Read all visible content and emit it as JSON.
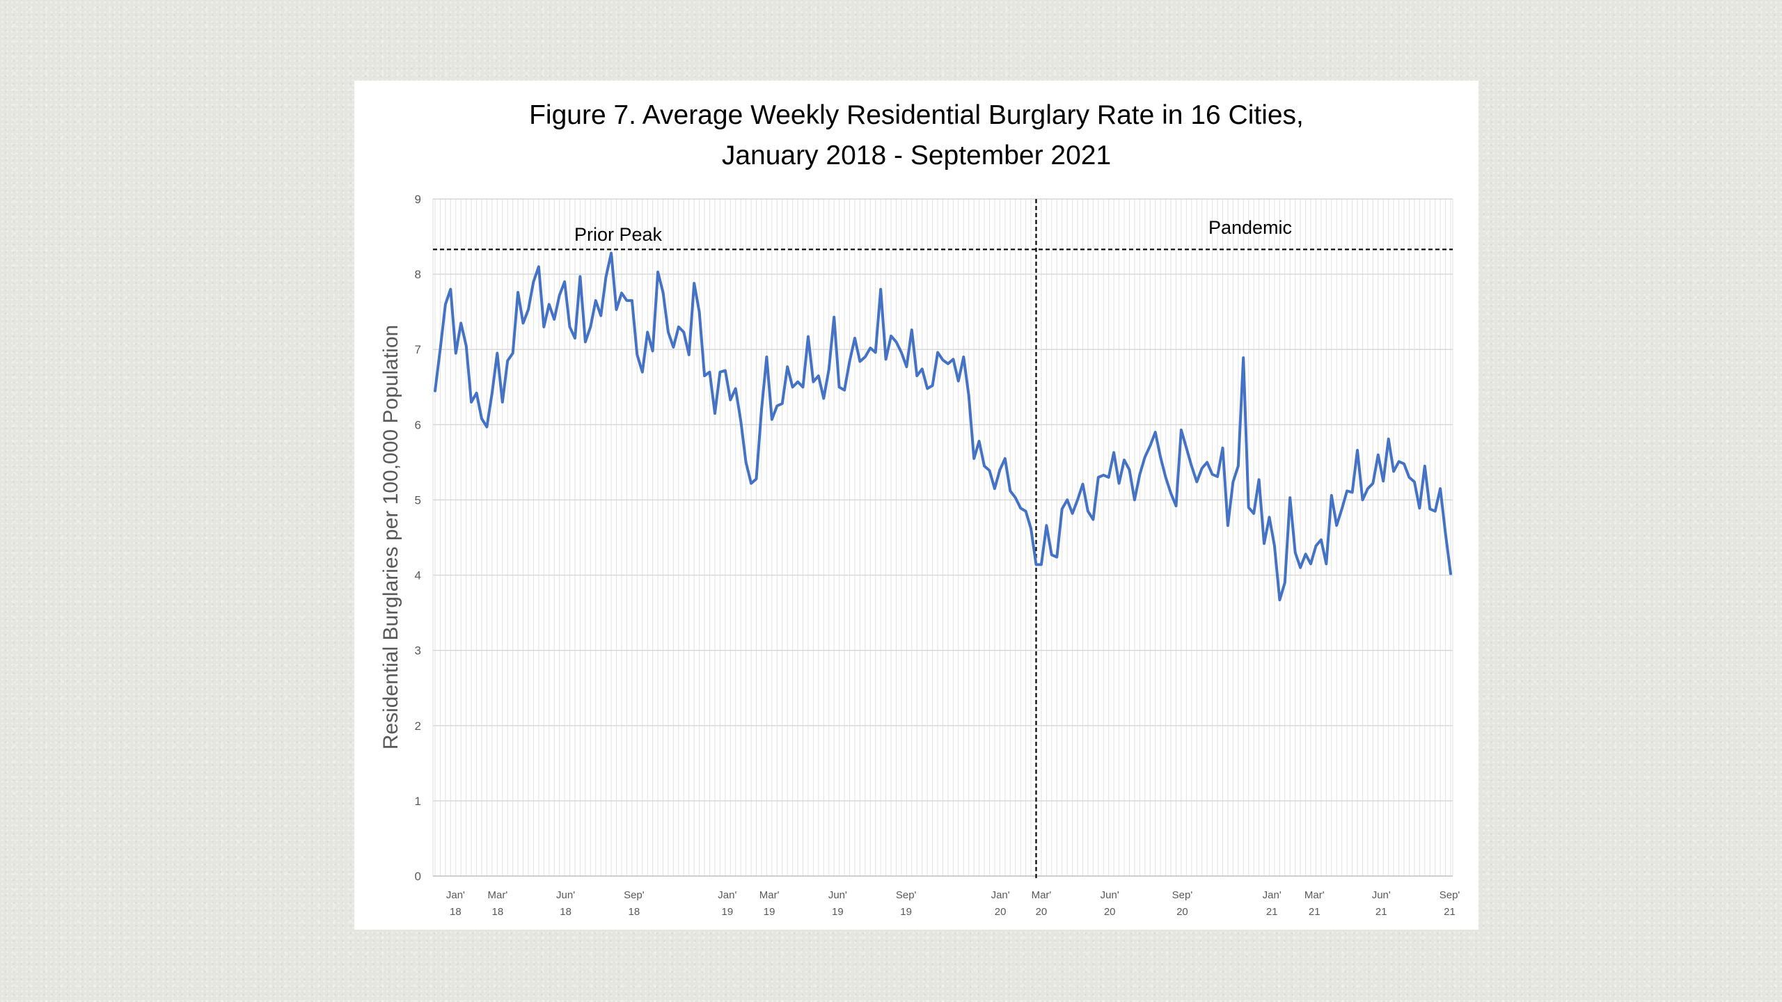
{
  "colors": {
    "page_background": "#e6e6e0",
    "card": "#ffffff",
    "series": "#4472C4",
    "reference_lines": "#000000"
  },
  "chart_data": {
    "type": "line",
    "title_lines": [
      "Figure 7. Average Weekly Residential Burglary Rate in 16 Cities,",
      "January 2018 - September 2021"
    ],
    "ylabel": "Residential Burglaries per 100,000 Population",
    "ylim": [
      0,
      9
    ],
    "yticks": [
      "0",
      "1",
      "2",
      "3",
      "4",
      "5",
      "6",
      "7",
      "8",
      "9"
    ],
    "grid": true,
    "x_tick_labels": [
      {
        "month": "Jan'",
        "year": "18"
      },
      {
        "month": "Mar'",
        "year": "18"
      },
      {
        "month": "Jun'",
        "year": "18"
      },
      {
        "month": "Sep'",
        "year": "18"
      },
      {
        "month": "Jan'",
        "year": "19"
      },
      {
        "month": "Mar'",
        "year": "19"
      },
      {
        "month": "Jun'",
        "year": "19"
      },
      {
        "month": "Sep'",
        "year": "19"
      },
      {
        "month": "Jan'",
        "year": "20"
      },
      {
        "month": "Mar'",
        "year": "20"
      },
      {
        "month": "Jun'",
        "year": "20"
      },
      {
        "month": "Sep'",
        "year": "20"
      },
      {
        "month": "Jan'",
        "year": "21"
      },
      {
        "month": "Mar'",
        "year": "21"
      },
      {
        "month": "Jun'",
        "year": "21"
      },
      {
        "month": "Sep'",
        "year": "21"
      }
    ],
    "series": [
      {
        "values": [
          6.45,
          7.0,
          7.6,
          7.8,
          6.95,
          7.35,
          7.05,
          6.3,
          6.42,
          6.08,
          5.97,
          6.42,
          6.95,
          6.3,
          6.85,
          6.95,
          7.76,
          7.35,
          7.53,
          7.9,
          8.1,
          7.3,
          7.6,
          7.4,
          7.72,
          7.9,
          7.3,
          7.15,
          7.97,
          7.1,
          7.3,
          7.65,
          7.45,
          7.97,
          8.28,
          7.53,
          7.75,
          7.65,
          7.65,
          6.93,
          6.7,
          7.23,
          6.98,
          8.03,
          7.76,
          7.23,
          7.03,
          7.3,
          7.23,
          6.93,
          7.88,
          7.5,
          6.65,
          6.7,
          6.15,
          6.7,
          6.72,
          6.33,
          6.48,
          6.05,
          5.5,
          5.22,
          5.28,
          6.2,
          6.9,
          6.07,
          6.25,
          6.28,
          6.77,
          6.5,
          6.57,
          6.5,
          7.17,
          6.57,
          6.65,
          6.35,
          6.73,
          7.43,
          6.5,
          6.46,
          6.84,
          7.15,
          6.84,
          6.9,
          7.02,
          6.96,
          7.8,
          6.87,
          7.18,
          7.1,
          6.96,
          6.77,
          7.26,
          6.65,
          6.74,
          6.48,
          6.52,
          6.96,
          6.86,
          6.81,
          6.87,
          6.58,
          6.9,
          6.39,
          5.55,
          5.78,
          5.45,
          5.39,
          5.15,
          5.4,
          5.55,
          5.12,
          5.03,
          4.89,
          4.85,
          4.62,
          4.14,
          4.14,
          4.66,
          4.27,
          4.24,
          4.88,
          5.0,
          4.82,
          5.0,
          5.21,
          4.85,
          4.74,
          5.3,
          5.33,
          5.3,
          5.63,
          5.22,
          5.53,
          5.4,
          5.0,
          5.34,
          5.57,
          5.72,
          5.9,
          5.57,
          5.3,
          5.09,
          4.92,
          5.93,
          5.69,
          5.45,
          5.24,
          5.42,
          5.5,
          5.34,
          5.31,
          5.69,
          4.66,
          5.24,
          5.45,
          6.89,
          4.9,
          4.82,
          5.27,
          4.42,
          4.77,
          4.39,
          3.67,
          3.9,
          5.03,
          4.3,
          4.1,
          4.28,
          4.15,
          4.39,
          4.47,
          4.15,
          5.06,
          4.66,
          4.88,
          5.12,
          5.1,
          5.66,
          5.0,
          5.15,
          5.22,
          5.6,
          5.25,
          5.81,
          5.38,
          5.51,
          5.48,
          5.3,
          5.24,
          4.89,
          5.45,
          4.88,
          4.85,
          5.15,
          4.55,
          4.02
        ],
        "color": "#4472C4"
      }
    ],
    "reference_line": {
      "orientation": "horizontal",
      "value": 8.33,
      "style": "dashed"
    },
    "annotations": [
      "Prior Peak",
      "Pandemic"
    ]
  }
}
